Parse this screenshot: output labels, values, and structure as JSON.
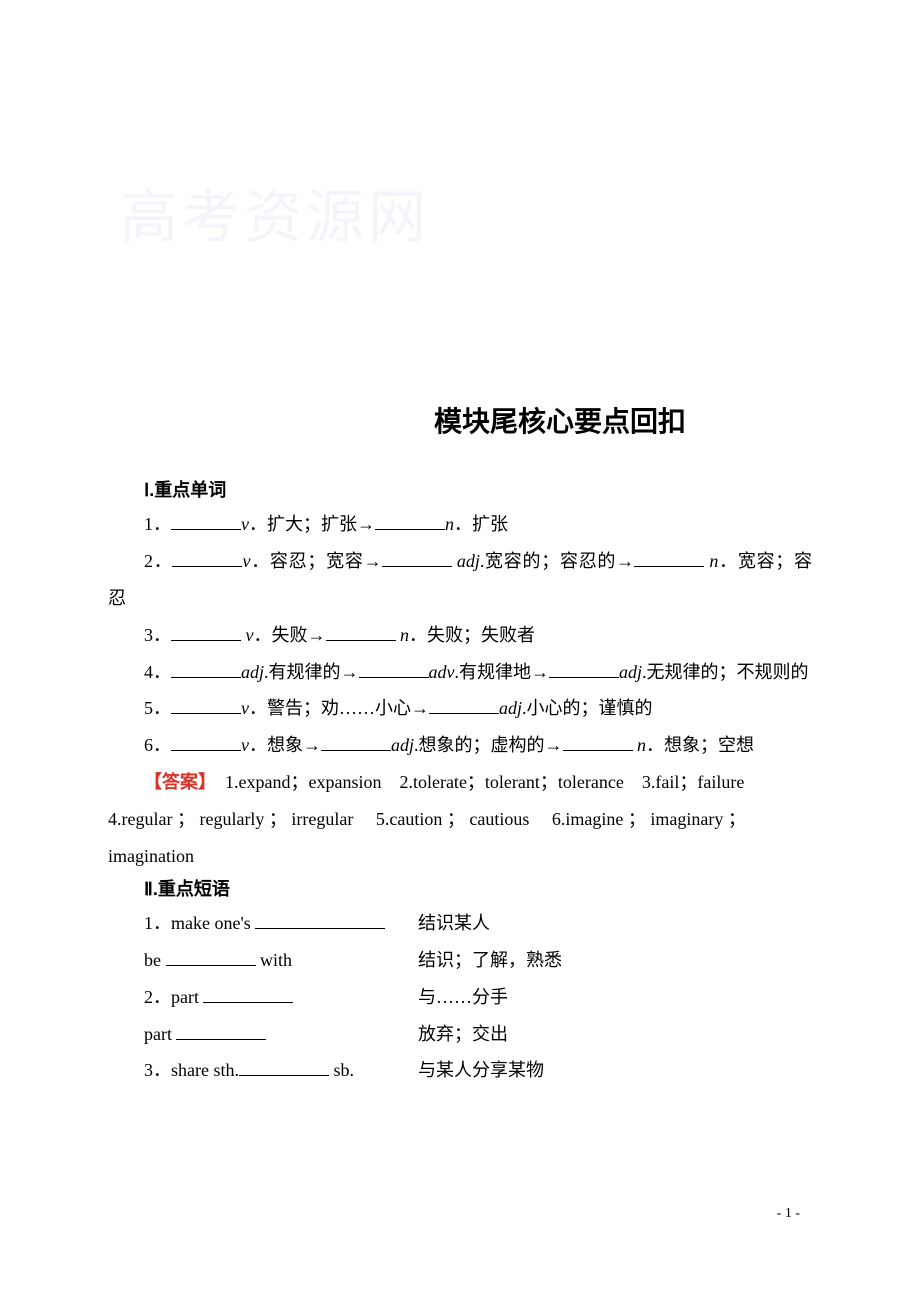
{
  "watermark": "高考资源网",
  "title": "模块尾核心要点回扣",
  "sections": {
    "s1_label": "Ⅰ.重点单词",
    "s2_label": "Ⅱ.重点短语"
  },
  "words": {
    "q1_a": "1．",
    "q1_b": "．扩大；扩张→",
    "q1_c": "．扩张",
    "q2_a": "2．",
    "q2_b": "．容忍；宽容→",
    "q2_c": ".宽容的；容忍的→",
    "q2_d": "．宽容；容忍",
    "q3_a": "3．",
    "q3_b": "．失败→",
    "q3_c": "．失败；失败者",
    "q4_a": "4．",
    "q4_b": ".有规律的→",
    "q4_c": ".有规律地→",
    "q4_d": ".无规律的；不规则的",
    "q5_a": "5．",
    "q5_b": "．警告；劝……小心→",
    "q5_c": ".小心的；谨慎的",
    "q6_a": "6．",
    "q6_b": "．想象→",
    "q6_c": ".想象的；虚构的→",
    "q6_d": "．想象；空想"
  },
  "pos": {
    "v": "v",
    "n": "n",
    "adj": "adj",
    "adv": "adv"
  },
  "answer": {
    "label": "【答案】",
    "text_line1": "　1.expand；expansion　2.tolerate；tolerant；tolerance　3.fail；failure",
    "text_line2": "4.regular ； regularly ； irregular　 5.caution ； cautious　 6.imagine ； imaginary ；",
    "text_line3": "imagination"
  },
  "phrases": {
    "p1_l": "1．make one's ",
    "p1_r": "结识某人",
    "p1b_l": "be ",
    "p1b_l2": " with",
    "p1b_r": "结识；了解，熟悉",
    "p2_l": "2．part ",
    "p2_r": "与……分手",
    "p2b_l": "part ",
    "p2b_r": "放弃；交出",
    "p3_l": "3．share sth.",
    "p3_l2": " sb.",
    "p3_r": "与某人分享某物"
  },
  "footer": "- 1 -",
  "colors": {
    "answer_label": "#d8342a",
    "text": "#000000",
    "watermark": "#f2f5fa",
    "bg": "#ffffff"
  }
}
